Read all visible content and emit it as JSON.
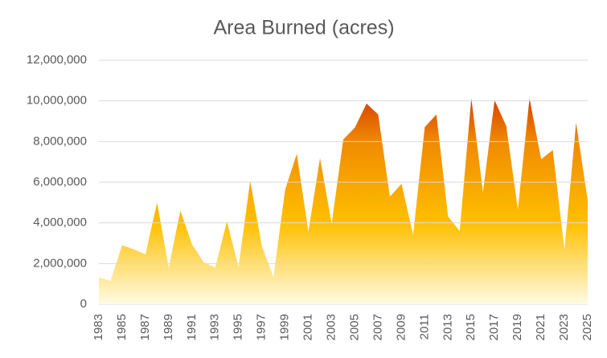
{
  "chart_data": {
    "type": "area",
    "title": "Area Burned (acres)",
    "x": [
      1983,
      1984,
      1985,
      1986,
      1987,
      1988,
      1989,
      1990,
      1991,
      1992,
      1993,
      1994,
      1995,
      1996,
      1997,
      1998,
      1999,
      2000,
      2001,
      2002,
      2003,
      2004,
      2005,
      2006,
      2007,
      2008,
      2009,
      2010,
      2011,
      2012,
      2013,
      2014,
      2015,
      2016,
      2017,
      2018,
      2019,
      2020,
      2021,
      2022,
      2023,
      2024,
      2025
    ],
    "values": [
      1320000,
      1150000,
      2900000,
      2700000,
      2450000,
      5000000,
      1800000,
      4600000,
      2950000,
      2070000,
      1800000,
      4070000,
      1840000,
      6070000,
      2860000,
      1330000,
      5630000,
      7390000,
      3570000,
      7180000,
      3960000,
      8100000,
      8690000,
      9870000,
      9330000,
      5290000,
      5920000,
      3420000,
      8710000,
      9330000,
      4320000,
      3600000,
      10130000,
      5510000,
      10030000,
      8770000,
      4660000,
      10120000,
      7130000,
      7580000,
      2690000,
      8920000,
      5100000
    ],
    "xlim": [
      1983,
      2025
    ],
    "xticks": [
      1983,
      1985,
      1987,
      1989,
      1991,
      1993,
      1995,
      1997,
      1999,
      2001,
      2003,
      2005,
      2007,
      2009,
      2011,
      2013,
      2015,
      2017,
      2019,
      2021,
      2023,
      2025
    ],
    "ylim": [
      0,
      12000000
    ],
    "yticks": [
      0,
      {
        "value": 2000000,
        "label": "2,000,000"
      },
      {
        "value": 4000000,
        "label": "4,000,000"
      },
      {
        "value": 6000000,
        "label": "6,000,000"
      },
      {
        "value": 8000000,
        "label": "8,000,000"
      },
      {
        "value": 10000000,
        "label": "10,000,000"
      },
      {
        "value": 12000000,
        "label": "12,000,000"
      }
    ],
    "grid": true,
    "gradient": [
      "#fffbe6",
      "#ffc000",
      "#f08a00",
      "#c00000"
    ]
  }
}
